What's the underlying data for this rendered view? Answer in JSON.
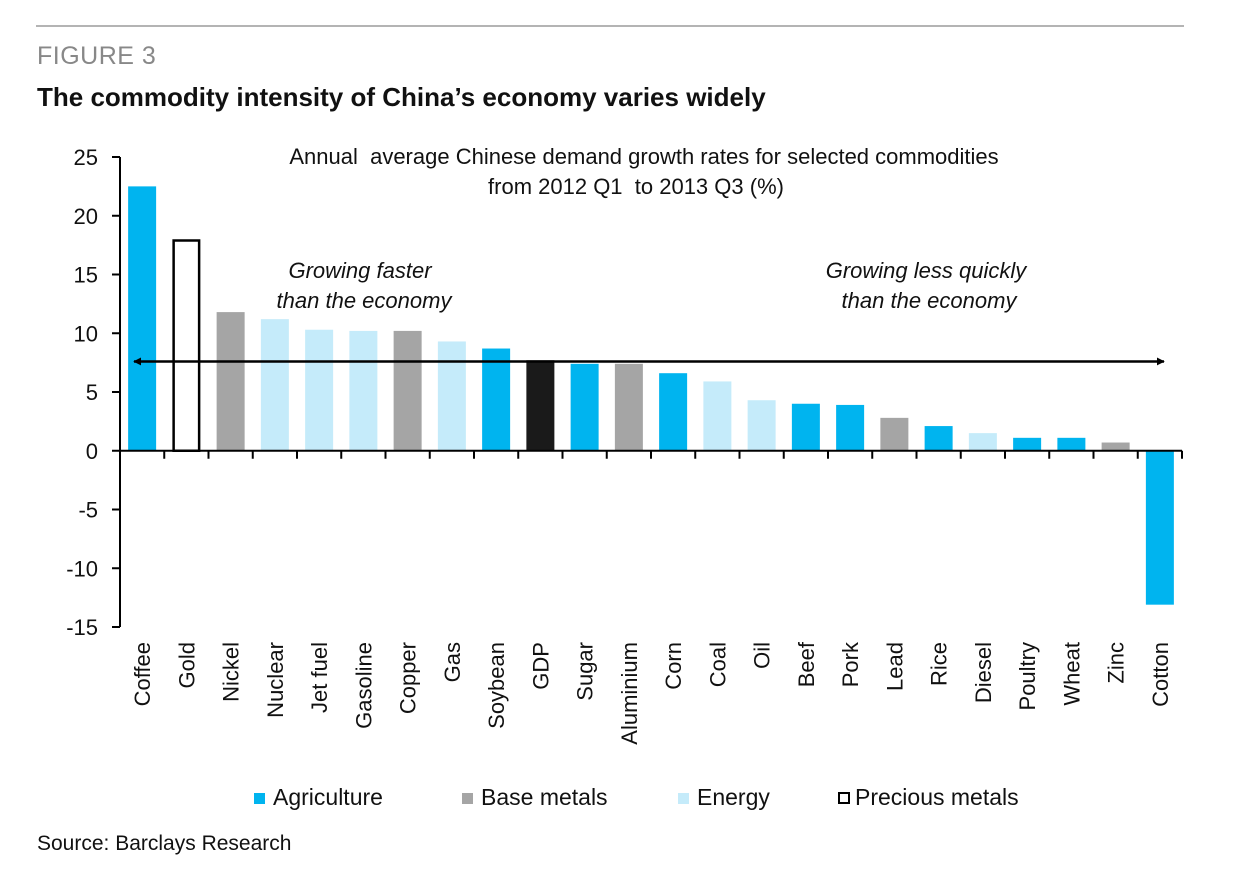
{
  "figure": {
    "label": "FIGURE 3",
    "title": "The commodity intensity of China’s economy varies widely",
    "source": "Source: Barclays Research"
  },
  "colors": {
    "Agriculture": "#00b4ef",
    "Base metals": "#a5a5a5",
    "Energy": "#c5ebfa",
    "Precious metals": "#ffffff",
    "GDP": "#1a1a1a",
    "axis": "#000000"
  },
  "chart_data": {
    "type": "bar",
    "title": "Annual  average Chinese demand growth rates for selected commodities",
    "subtitle": "from 2012 Q1  to 2013 Q3 (%)",
    "xlabel": "",
    "ylabel": "",
    "ylim": [
      -15,
      25
    ],
    "yticks": [
      25,
      20,
      15,
      10,
      5,
      0,
      -5,
      -10,
      -15
    ],
    "grid": false,
    "legend_position": "bottom",
    "categories": [
      "Coffee",
      "Gold",
      "Nickel",
      "Nuclear",
      "Jet fuel",
      "Gasoline",
      "Copper",
      "Gas",
      "Soybean",
      "GDP",
      "Sugar",
      "Aluminium",
      "Corn",
      "Coal",
      "Oil",
      "Beef",
      "Pork",
      "Lead",
      "Rice",
      "Diesel",
      "Poultry",
      "Wheat",
      "Zinc",
      "Cotton"
    ],
    "values": [
      22.5,
      18.0,
      11.8,
      11.2,
      10.3,
      10.2,
      10.2,
      9.3,
      8.7,
      7.7,
      7.4,
      7.4,
      6.6,
      5.9,
      4.3,
      4.0,
      3.9,
      2.8,
      2.1,
      1.5,
      1.1,
      1.1,
      0.7,
      -13.1
    ],
    "groups": [
      "Agriculture",
      "Precious metals",
      "Base metals",
      "Energy",
      "Energy",
      "Energy",
      "Base metals",
      "Energy",
      "Agriculture",
      "GDP",
      "Agriculture",
      "Base metals",
      "Agriculture",
      "Energy",
      "Energy",
      "Agriculture",
      "Agriculture",
      "Base metals",
      "Agriculture",
      "Energy",
      "Agriculture",
      "Agriculture",
      "Base metals",
      "Agriculture"
    ],
    "legend": [
      "Agriculture",
      "Base metals",
      "Energy",
      "Precious metals"
    ],
    "reference_line": {
      "value": 7.6,
      "style": "double-headed arrow"
    },
    "annotations": [
      {
        "text": "Growing faster",
        "text2": "than the economy"
      },
      {
        "text": "Growing less quickly",
        "text2": "than the economy"
      }
    ]
  }
}
